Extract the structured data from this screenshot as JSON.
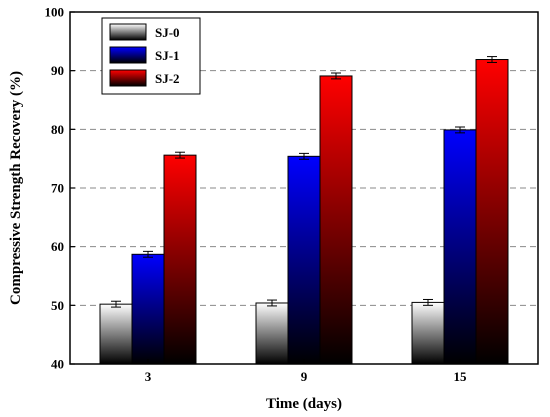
{
  "chart_data": {
    "type": "bar",
    "categories": [
      "3",
      "9",
      "15"
    ],
    "series": [
      {
        "name": "SJ-0",
        "values": [
          50.2,
          50.4,
          50.5
        ],
        "errors": [
          0.5,
          0.5,
          0.5
        ],
        "gradient": [
          "#ffffff",
          "#000000"
        ]
      },
      {
        "name": "SJ-1",
        "values": [
          58.7,
          75.4,
          79.9
        ],
        "errors": [
          0.5,
          0.5,
          0.5
        ],
        "gradient": [
          "#0000ff",
          "#000000"
        ]
      },
      {
        "name": "SJ-2",
        "values": [
          75.6,
          89.1,
          91.9
        ],
        "errors": [
          0.5,
          0.5,
          0.5
        ],
        "gradient": [
          "#ff0000",
          "#000000"
        ]
      }
    ],
    "xlabel": "Time (days)",
    "ylabel": "Compressive Strength Recovery  (%)",
    "ylim": [
      40,
      100
    ],
    "yticks": [
      40,
      50,
      60,
      70,
      80,
      90,
      100
    ],
    "grid": "horizontal dashed",
    "legend_position": "top-left"
  }
}
